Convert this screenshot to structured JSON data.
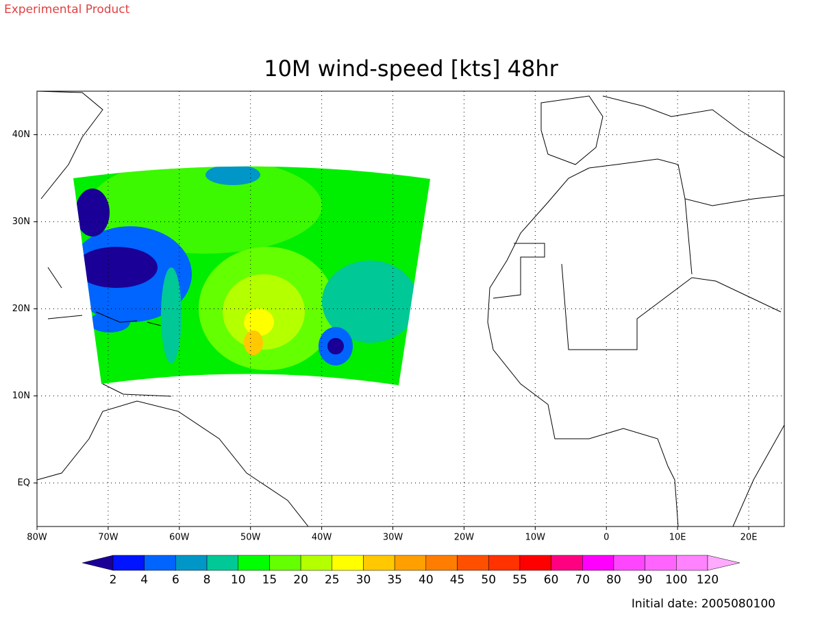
{
  "header": {
    "note": "Experimental Product"
  },
  "title": "10M wind-speed [kts] 48hr",
  "map": {
    "xlim": [
      -80,
      25
    ],
    "ylim": [
      -5,
      45
    ],
    "grid": true,
    "xticks": [
      {
        "value": -80,
        "label": "80W"
      },
      {
        "value": -70,
        "label": "70W"
      },
      {
        "value": -60,
        "label": "60W"
      },
      {
        "value": -50,
        "label": "50W"
      },
      {
        "value": -40,
        "label": "40W"
      },
      {
        "value": -30,
        "label": "30W"
      },
      {
        "value": -20,
        "label": "20W"
      },
      {
        "value": -10,
        "label": "10W"
      },
      {
        "value": 0,
        "label": "0"
      },
      {
        "value": 10,
        "label": "10E"
      },
      {
        "value": 20,
        "label": "20E"
      }
    ],
    "yticks": [
      {
        "value": 40,
        "label": "40N"
      },
      {
        "value": 30,
        "label": "30N"
      },
      {
        "value": 20,
        "label": "20N"
      },
      {
        "value": 10,
        "label": "10N"
      },
      {
        "value": 0,
        "label": "EQ"
      }
    ]
  },
  "colorbar": {
    "levels": [
      2,
      4,
      6,
      8,
      10,
      15,
      20,
      25,
      30,
      35,
      40,
      45,
      50,
      55,
      60,
      70,
      80,
      90,
      100,
      120
    ],
    "colors": [
      "#1a0096",
      "#0014ff",
      "#0064ff",
      "#0096c8",
      "#00c896",
      "#00ff00",
      "#64ff00",
      "#b4ff00",
      "#ffff00",
      "#ffc800",
      "#ffa000",
      "#ff7d00",
      "#ff5000",
      "#ff3200",
      "#ff0000",
      "#ff0080",
      "#ff00ff",
      "#ff46ff",
      "#ff64ff",
      "#ff82ff",
      "#ffaaff"
    ]
  },
  "footer": {
    "initial_date": "Initial date: 2005080100"
  }
}
